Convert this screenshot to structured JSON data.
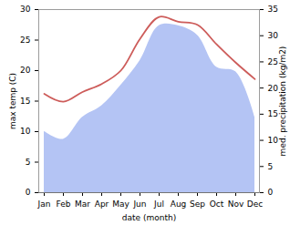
{
  "chart_data": {
    "type": "line",
    "xlabel": "date (month)",
    "ylabel": "max temp (C)",
    "y2label": "med. precipitation (kg/m2)",
    "categories": [
      "Jan",
      "Feb",
      "Mar",
      "Apr",
      "May",
      "Jun",
      "Jul",
      "Aug",
      "Sep",
      "Oct",
      "Nov",
      "Dec"
    ],
    "series": [
      {
        "type": "area",
        "axis": "y2",
        "color": "#b4c4f4",
        "values": [
          11.7,
          10.2,
          14.4,
          16.6,
          20.5,
          25.2,
          31.9,
          31.9,
          30.1,
          24.0,
          23.1,
          14.4
        ]
      },
      {
        "type": "line",
        "axis": "y",
        "color": "#cd5c5a",
        "values": [
          16.2,
          14.9,
          16.5,
          17.8,
          20.0,
          25.2,
          28.8,
          28.0,
          27.5,
          24.3,
          21.3,
          18.6
        ]
      }
    ],
    "ylim": [
      0,
      30
    ],
    "yticks": [
      0,
      5,
      10,
      15,
      20,
      25,
      30
    ],
    "y2lim": [
      0,
      35
    ],
    "y2ticks": [
      0,
      5,
      10,
      15,
      20,
      25,
      30,
      35
    ]
  }
}
